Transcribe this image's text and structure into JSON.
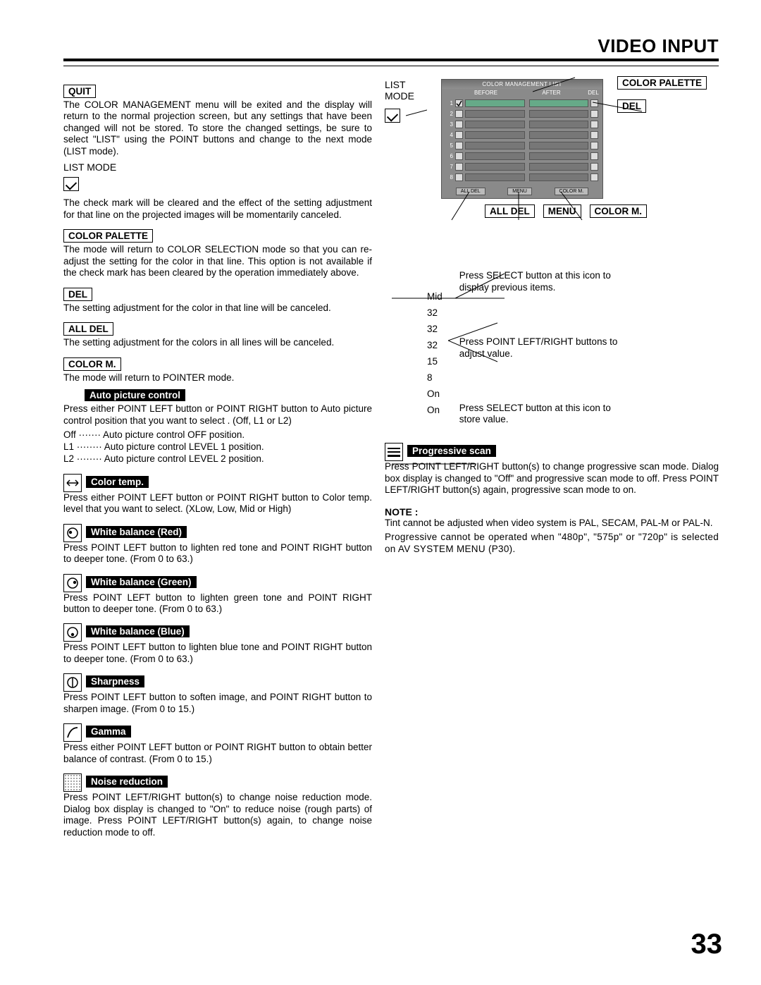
{
  "page": {
    "title": "VIDEO INPUT",
    "number": "33"
  },
  "left": {
    "quit": {
      "label": "QUIT",
      "text": "The COLOR MANAGEMENT menu will be exited and the display will return to the normal projection screen, but any settings that have been changed will not be stored. To store the changed settings, be sure to select \"LIST\" using the POINT buttons and change to the next mode (LIST mode)."
    },
    "list_mode_label": "LIST MODE",
    "list_mode_text": "The check mark will be cleared and the effect of the setting adjustment for that line on the projected images will be momentarily canceled.",
    "color_palette": {
      "label": "COLOR PALETTE",
      "text": "The mode will return to COLOR SELECTION mode so that you can re-adjust the setting for the color in that line. This option is not available if the check mark has been cleared by the operation immediately above."
    },
    "del": {
      "label": "DEL",
      "text": "The setting adjustment for the color in that line will be canceled."
    },
    "all_del": {
      "label": "ALL DEL",
      "text": "The setting adjustment for the colors in all lines will be canceled."
    },
    "color_m": {
      "label": "COLOR M.",
      "text": "The mode will return to POINTER mode."
    },
    "auto_picture": {
      "label": "Auto picture control",
      "text": "Press either POINT LEFT button or POINT RIGHT button to Auto picture control position that you want to select . (Off, L1 or L2)",
      "defs": [
        {
          "k": "Off",
          "v": "Auto picture control OFF position."
        },
        {
          "k": "L1",
          "v": "Auto picture control LEVEL 1 position."
        },
        {
          "k": "L2",
          "v": "Auto picture control LEVEL 2 position."
        }
      ]
    },
    "color_temp": {
      "label": "Color temp.",
      "text": "Press either POINT LEFT button or POINT RIGHT button to Color temp. level that you want to select. (XLow, Low, Mid or High)",
      "icon": "↔"
    },
    "wb_red": {
      "label": "White balance (Red)",
      "text": "Press POINT LEFT button to lighten red tone and POINT RIGHT button to deeper tone.  (From 0 to 63.)"
    },
    "wb_green": {
      "label": "White balance (Green)",
      "text": "Press POINT LEFT button to lighten green tone and POINT RIGHT button to deeper tone.  (From 0 to 63.)"
    },
    "wb_blue": {
      "label": "White balance (Blue)",
      "text": "Press POINT LEFT button to lighten blue tone and POINT RIGHT button to deeper tone.  (From 0 to 63.)"
    },
    "sharpness": {
      "label": "Sharpness",
      "text": "Press POINT LEFT button to soften image, and POINT RIGHT button to sharpen image.  (From 0 to 15.)"
    },
    "gamma": {
      "label": "Gamma",
      "text": "Press either POINT LEFT button or POINT RIGHT button to obtain better balance of contrast.  (From 0 to 15.)"
    },
    "noise": {
      "label": "Noise reduction",
      "text": "Press POINT LEFT/RIGHT button(s) to change noise reduction mode.  Dialog box display is changed to \"On\" to reduce noise (rough parts) of  image. Press POINT LEFT/RIGHT button(s) again, to change noise reduction mode to off."
    }
  },
  "right": {
    "list_mode_label": "LIST MODE",
    "panel_title": "COLOR MANAGEMENT LIST",
    "panel_headers": [
      "BEFORE",
      "AFTER",
      "DEL"
    ],
    "panel_footer": [
      "ALL DEL",
      "MENU",
      "COLOR M."
    ],
    "row_count": 8,
    "callouts": {
      "color_palette": "COLOR PALETTE",
      "del": "DEL",
      "all_del": "ALL DEL",
      "menu": "MENU",
      "color_m": "COLOR M."
    },
    "values": [
      "Mid",
      "32",
      "32",
      "32",
      "15",
      "8",
      "On",
      "On"
    ],
    "note_prev": "Press SELECT button at this icon to display previous items.",
    "note_adjust": "Press POINT LEFT/RIGHT buttons to adjust value.",
    "note_store": "Press SELECT button at this icon to store value.",
    "progressive": {
      "label": "Progressive scan",
      "text": "Press POINT LEFT/RIGHT button(s) to change progressive scan mode.  Dialog box display is changed to \"Off\" and progressive scan mode to off.  Press POINT LEFT/RIGHT button(s) again, progressive scan mode to on."
    },
    "note_label": "NOTE :",
    "note1": "Tint cannot be adjusted when video system is PAL, SECAM, PAL-M or PAL-N.",
    "note2": "Progressive cannot be operated when \"480p\", \"575p\" or \"720p\" is selected on AV SYSTEM MENU (P30)."
  },
  "colors": {
    "panel_bg": "#8a8a8a",
    "panel_border": "#555555",
    "page_bg": "#ffffff",
    "text": "#000000"
  }
}
